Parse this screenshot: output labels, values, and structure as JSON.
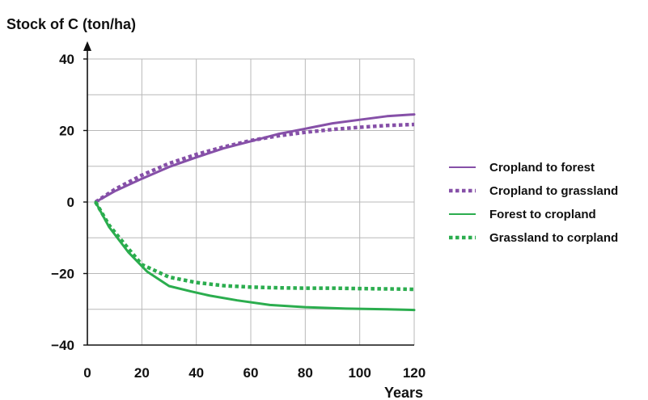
{
  "chart_data": {
    "type": "line",
    "title": "",
    "ylabel": "Stock of C (ton/ha)",
    "xlabel": "Years",
    "xlim": [
      0,
      120
    ],
    "ylim": [
      -40,
      40
    ],
    "x_ticks": [
      0,
      20,
      40,
      60,
      80,
      100,
      120
    ],
    "y_ticks": [
      40,
      20,
      0,
      -20,
      -40
    ],
    "y_tick_labels": [
      "40",
      "20",
      "0",
      "−20",
      "−40"
    ],
    "grid": true,
    "legend_position": "right",
    "series": [
      {
        "name": "Cropland to forest",
        "color": "#8650a8",
        "style": "solid",
        "x": [
          3,
          10,
          20,
          30,
          40,
          50,
          60,
          70,
          80,
          90,
          100,
          110,
          120
        ],
        "y": [
          0,
          3,
          6.5,
          9.8,
          12.5,
          15,
          17,
          19,
          20.5,
          22,
          23,
          24,
          24.5
        ]
      },
      {
        "name": "Cropland to grassland",
        "color": "#8650a8",
        "style": "dotted",
        "x": [
          3,
          10,
          20,
          30,
          40,
          50,
          60,
          70,
          80,
          90,
          100,
          110,
          120
        ],
        "y": [
          0,
          3.5,
          7.5,
          10.8,
          13.3,
          15.4,
          17.2,
          18.5,
          19.5,
          20.3,
          20.9,
          21.4,
          21.7
        ]
      },
      {
        "name": "Forest to cropland",
        "color": "#2bad4e",
        "style": "solid",
        "x": [
          3,
          8,
          15,
          22,
          30,
          38,
          45,
          55,
          67,
          80,
          95,
          110,
          120
        ],
        "y": [
          0,
          -7,
          -14,
          -19.5,
          -23.5,
          -25,
          -26.2,
          -27.5,
          -28.8,
          -29.4,
          -29.8,
          -30,
          -30.2
        ]
      },
      {
        "name": "Grassland to corpland",
        "color": "#2bad4e",
        "style": "dotted",
        "x": [
          3,
          8,
          15,
          20,
          30,
          40,
          50,
          60,
          70,
          80,
          90,
          100,
          110,
          120
        ],
        "y": [
          0,
          -6.5,
          -13,
          -17.5,
          -21,
          -22.5,
          -23.4,
          -23.8,
          -24,
          -24.1,
          -24.1,
          -24.2,
          -24.3,
          -24.4
        ]
      }
    ]
  }
}
